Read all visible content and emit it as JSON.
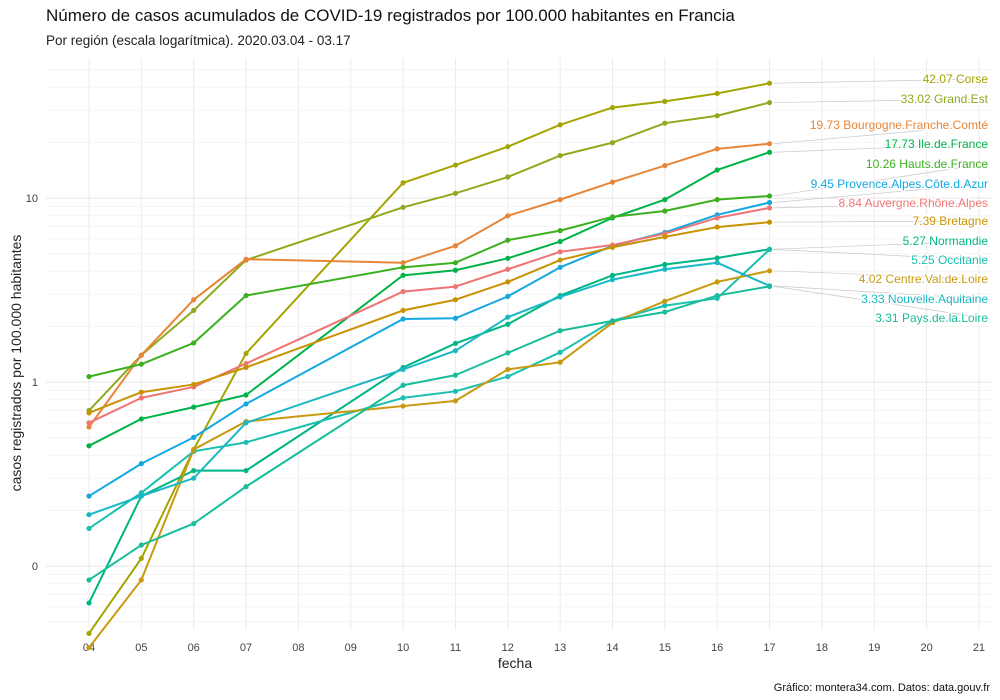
{
  "title": "Número de casos acumulados de COVID-19 registrados por 100.000 habitantes en Francia",
  "subtitle": "Por región (escala logarítmica). 2020.03.04 - 03.17",
  "caption": "Gráfico: montera34.com. Datos: data.gouv.fr",
  "chart_data": {
    "type": "line",
    "xlabel": "fecha",
    "ylabel": "casos registrados por 100.000 habitantes",
    "x": [
      "04",
      "05",
      "06",
      "07",
      "08",
      "09",
      "10",
      "11",
      "12",
      "13",
      "14",
      "15",
      "16",
      "17",
      "18",
      "19",
      "20",
      "21"
    ],
    "yscale": "log",
    "y_ticks": [
      {
        "value": 0.1,
        "label": "0"
      },
      {
        "value": 1,
        "label": "1"
      },
      {
        "value": 10,
        "label": "10"
      }
    ],
    "grid": true,
    "series": [
      {
        "name": "Corse",
        "color": "#a3a500",
        "label": "42.07 Corse",
        "points": [
          [
            "04",
            0.043
          ],
          [
            "05",
            0.11
          ],
          [
            "06",
            0.43
          ],
          [
            "07",
            1.43
          ],
          [
            "10",
            12.1
          ],
          [
            "11",
            15.1
          ],
          [
            "12",
            19
          ],
          [
            "13",
            25
          ],
          [
            "14",
            31
          ],
          [
            "15",
            33.5
          ],
          [
            "16",
            37
          ],
          [
            "17",
            42.07
          ]
        ]
      },
      {
        "name": "Grand.Est",
        "color": "#8eab1d",
        "label": "33.02 Grand.Est",
        "points": [
          [
            "04",
            0.7
          ],
          [
            "05",
            1.4
          ],
          [
            "06",
            2.45
          ],
          [
            "07",
            4.6
          ],
          [
            "10",
            8.9
          ],
          [
            "11",
            10.6
          ],
          [
            "12",
            13
          ],
          [
            "13",
            17
          ],
          [
            "14",
            20
          ],
          [
            "15",
            25.5
          ],
          [
            "16",
            28
          ],
          [
            "17",
            33.02
          ]
        ]
      },
      {
        "name": "Bourgogne.Franche.Comté",
        "color": "#e88536",
        "label": "19.73 Bourgogne.Franche.Comté",
        "points": [
          [
            "04",
            0.57
          ],
          [
            "05",
            1.4
          ],
          [
            "06",
            2.8
          ],
          [
            "07",
            4.65
          ],
          [
            "10",
            4.45
          ],
          [
            "11",
            5.5
          ],
          [
            "12",
            8
          ],
          [
            "13",
            9.8
          ],
          [
            "14",
            12.2
          ],
          [
            "15",
            15
          ],
          [
            "16",
            18.5
          ],
          [
            "17",
            19.73
          ]
        ]
      },
      {
        "name": "Ile.de.France",
        "color": "#00b348",
        "label": "17.73 Ile.de.France",
        "points": [
          [
            "04",
            0.45
          ],
          [
            "05",
            0.63
          ],
          [
            "06",
            0.73
          ],
          [
            "07",
            0.85
          ],
          [
            "10",
            3.8
          ],
          [
            "11",
            4.05
          ],
          [
            "12",
            4.7
          ],
          [
            "13",
            5.8
          ],
          [
            "14",
            7.8
          ],
          [
            "15",
            9.8
          ],
          [
            "16",
            14.2
          ],
          [
            "17",
            17.73
          ]
        ]
      },
      {
        "name": "Hauts.de.France",
        "color": "#3cb01f",
        "label": "10.26 Hauts.de.France",
        "points": [
          [
            "04",
            1.07
          ],
          [
            "05",
            1.25
          ],
          [
            "06",
            1.63
          ],
          [
            "07",
            2.95
          ],
          [
            "10",
            4.2
          ],
          [
            "11",
            4.45
          ],
          [
            "12",
            5.9
          ],
          [
            "13",
            6.65
          ],
          [
            "14",
            7.9
          ],
          [
            "15",
            8.5
          ],
          [
            "16",
            9.8
          ],
          [
            "17",
            10.26
          ]
        ]
      },
      {
        "name": "Provence.Alpes.Côte.d.Azur",
        "color": "#14a8e0",
        "label": "9.45 Provence.Alpes.Côte.d.Azur",
        "points": [
          [
            "04",
            0.24
          ],
          [
            "05",
            0.36
          ],
          [
            "06",
            0.5
          ],
          [
            "07",
            0.76
          ],
          [
            "10",
            2.2
          ],
          [
            "11",
            2.22
          ],
          [
            "12",
            2.92
          ],
          [
            "13",
            4.2
          ],
          [
            "14",
            5.5
          ],
          [
            "15",
            6.5
          ],
          [
            "16",
            8.1
          ],
          [
            "17",
            9.45
          ]
        ]
      },
      {
        "name": "Auvergne.Rhône.Alpes",
        "color": "#f07474",
        "label": "8.84 Auvergne.Rhône.Alpes",
        "points": [
          [
            "04",
            0.6
          ],
          [
            "05",
            0.82
          ],
          [
            "06",
            0.94
          ],
          [
            "07",
            1.26
          ],
          [
            "10",
            3.1
          ],
          [
            "11",
            3.3
          ],
          [
            "12",
            4.1
          ],
          [
            "13",
            5.1
          ],
          [
            "14",
            5.55
          ],
          [
            "15",
            6.4
          ],
          [
            "16",
            7.8
          ],
          [
            "17",
            8.84
          ]
        ]
      },
      {
        "name": "Bretagne",
        "color": "#c99200",
        "label": "7.39 Bretagne",
        "points": [
          [
            "04",
            0.68
          ],
          [
            "05",
            0.88
          ],
          [
            "06",
            0.97
          ],
          [
            "07",
            1.2
          ],
          [
            "10",
            2.45
          ],
          [
            "11",
            2.8
          ],
          [
            "12",
            3.5
          ],
          [
            "13",
            4.6
          ],
          [
            "14",
            5.4
          ],
          [
            "15",
            6.15
          ],
          [
            "16",
            6.95
          ],
          [
            "17",
            7.39
          ]
        ]
      },
      {
        "name": "Normandie",
        "color": "#00b585",
        "label": "5.27 Normandie",
        "points": [
          [
            "04",
            0.063
          ],
          [
            "05",
            0.24
          ],
          [
            "06",
            0.33
          ],
          [
            "07",
            0.33
          ],
          [
            "10",
            1.2
          ],
          [
            "11",
            1.62
          ],
          [
            "12",
            2.06
          ],
          [
            "13",
            2.95
          ],
          [
            "14",
            3.8
          ],
          [
            "15",
            4.35
          ],
          [
            "16",
            4.72
          ],
          [
            "17",
            5.27
          ]
        ]
      },
      {
        "name": "Occitanie",
        "color": "#1abfb0",
        "label": "5.25 Occitanie",
        "points": [
          [
            "04",
            0.16
          ],
          [
            "05",
            0.25
          ],
          [
            "06",
            0.42
          ],
          [
            "07",
            0.47
          ],
          [
            "10",
            0.82
          ],
          [
            "11",
            0.89
          ],
          [
            "12",
            1.07
          ],
          [
            "13",
            1.45
          ],
          [
            "14",
            2.15
          ],
          [
            "15",
            2.6
          ],
          [
            "16",
            2.85
          ],
          [
            "17",
            5.25
          ]
        ]
      },
      {
        "name": "Centre.Val.de.Loire",
        "color": "#c99a10",
        "label": "4.02 Centre.Val.de.Loire",
        "points": [
          [
            "04",
            0.036
          ],
          [
            "05",
            0.084
          ],
          [
            "06",
            0.43
          ],
          [
            "07",
            0.61
          ],
          [
            "10",
            0.74
          ],
          [
            "11",
            0.79
          ],
          [
            "12",
            1.17
          ],
          [
            "13",
            1.28
          ],
          [
            "14",
            2.1
          ],
          [
            "15",
            2.75
          ],
          [
            "16",
            3.5
          ],
          [
            "17",
            4.02
          ]
        ]
      },
      {
        "name": "Nouvelle.Aquitaine",
        "color": "#1ab8c4",
        "label": "3.33 Nouvelle.Aquitaine",
        "points": [
          [
            "04",
            0.19
          ],
          [
            "05",
            0.24
          ],
          [
            "06",
            0.3
          ],
          [
            "07",
            0.6
          ],
          [
            "10",
            1.17
          ],
          [
            "11",
            1.48
          ],
          [
            "12",
            2.25
          ],
          [
            "13",
            2.9
          ],
          [
            "14",
            3.6
          ],
          [
            "15",
            4.1
          ],
          [
            "16",
            4.45
          ],
          [
            "17",
            3.33
          ]
        ]
      },
      {
        "name": "Pays.de.la.Loire",
        "color": "#18be9b",
        "label": "3.31 Pays.de.la.Loire",
        "points": [
          [
            "04",
            0.084
          ],
          [
            "05",
            0.13
          ],
          [
            "06",
            0.17
          ],
          [
            "07",
            0.27
          ],
          [
            "10",
            0.96
          ],
          [
            "11",
            1.09
          ],
          [
            "12",
            1.44
          ],
          [
            "13",
            1.9
          ],
          [
            "14",
            2.15
          ],
          [
            "15",
            2.4
          ],
          [
            "16",
            2.95
          ],
          [
            "17",
            3.31
          ]
        ]
      }
    ]
  }
}
